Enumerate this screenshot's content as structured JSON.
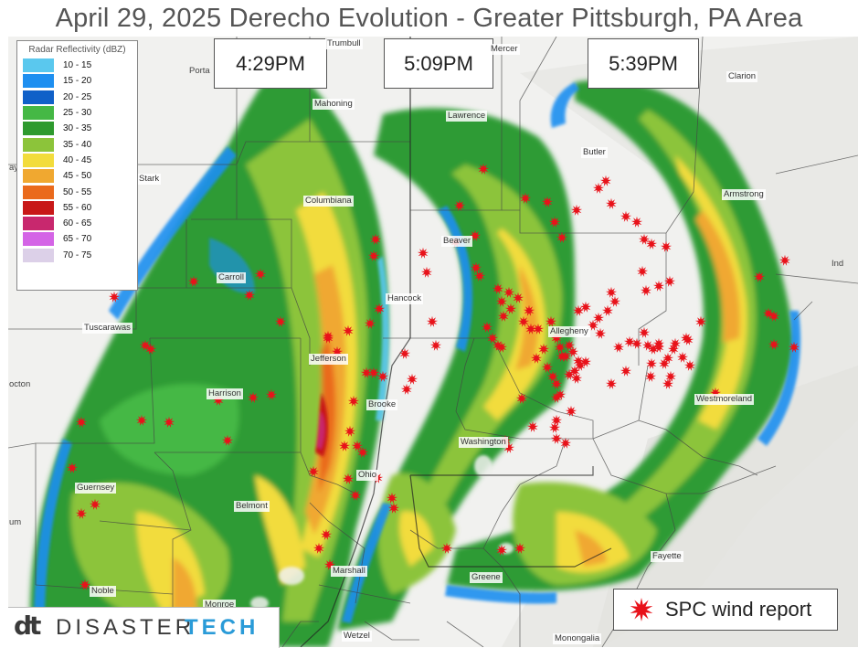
{
  "title": "April 29, 2025 Derecho Evolution - Greater Pittsburgh, PA Area",
  "time_labels": [
    "4:29PM",
    "5:09PM",
    "5:39PM"
  ],
  "legend": {
    "title": "Radar Reflectivity (dBZ)",
    "items": [
      {
        "label": "10 - 15",
        "color": "#5ac8ee"
      },
      {
        "label": "15 - 20",
        "color": "#1e8ff0"
      },
      {
        "label": "20 - 25",
        "color": "#1060c8"
      },
      {
        "label": "25 - 30",
        "color": "#45b845"
      },
      {
        "label": "30 - 35",
        "color": "#2e9a2e"
      },
      {
        "label": "35 - 40",
        "color": "#8cc43a"
      },
      {
        "label": "40 - 45",
        "color": "#f2dc3c"
      },
      {
        "label": "45 - 50",
        "color": "#f0a830"
      },
      {
        "label": "50 - 55",
        "color": "#ea6a1c"
      },
      {
        "label": "55 - 60",
        "color": "#c81818"
      },
      {
        "label": "60 - 65",
        "color": "#c8286e"
      },
      {
        "label": "65 - 70",
        "color": "#d464e6"
      },
      {
        "label": "70 - 75",
        "color": "#dcd0e8"
      }
    ]
  },
  "counties": [
    "Trumbull",
    "Mercer",
    "Mahoning",
    "Lawrence",
    "Butler",
    "Clarion",
    "Stark",
    "Columbiana",
    "Armstrong",
    "Beaver",
    "Carroll",
    "Hancock",
    "Tuscarawas",
    "Allegheny",
    "Jefferson",
    "Harrison",
    "Brooke",
    "Westmoreland",
    "Washington",
    "Ohio",
    "Guernsey",
    "Belmont",
    "Marshall",
    "Fayette",
    "Greene",
    "Noble",
    "Monroe",
    "Wetzel",
    "Monongalia"
  ],
  "edge_labels": [
    "Porta",
    "Ind",
    "octon",
    "um",
    "ay"
  ],
  "spc_legend_label": "SPC wind report",
  "logo": {
    "mark": "dt",
    "word1": "DISASTER",
    "word2": "TECH"
  },
  "colors": {
    "report_star": "#e8121a",
    "logo_accent": "#2a9bd8"
  }
}
